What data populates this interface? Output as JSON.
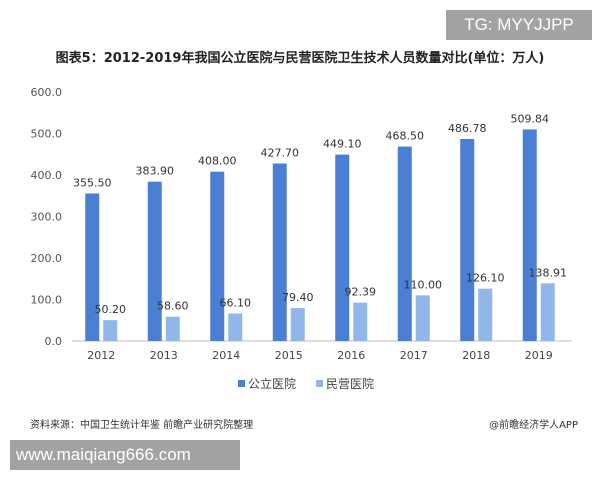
{
  "watermark_top": "TG: MYYJJPP",
  "watermark_bottom": "www.maiqiang666.com",
  "source": "资料来源：中国卫生统计年鉴 前瞻产业研究院整理",
  "credit": "@前瞻经济学人APP",
  "chart_data": {
    "type": "bar",
    "title": "图表5：2012-2019年我国公立医院与民营医院卫生技术人员数量对比(单位：万人)",
    "categories": [
      "2012",
      "2013",
      "2014",
      "2015",
      "2016",
      "2017",
      "2018",
      "2019"
    ],
    "series": [
      {
        "name": "公立医院",
        "color": "#4a7fd4",
        "values": [
          355.5,
          383.9,
          408.0,
          427.7,
          449.1,
          468.5,
          486.78,
          509.84
        ],
        "labels": [
          "355.50",
          "383.90",
          "408.00",
          "427.70",
          "449.10",
          "468.50",
          "486.78",
          "509.84"
        ]
      },
      {
        "name": "民营医院",
        "color": "#91b7e8",
        "values": [
          50.2,
          58.6,
          66.1,
          79.4,
          92.39,
          110.0,
          126.1,
          138.91
        ],
        "labels": [
          "50.20",
          "58.60",
          "66.10",
          "79.40",
          "92.39",
          "110.00",
          "126.10",
          "138.91"
        ]
      }
    ],
    "ylim": [
      0,
      600
    ],
    "yticks": [
      "0.0",
      "100.0",
      "200.0",
      "300.0",
      "400.0",
      "500.0",
      "600.0"
    ],
    "grid": false,
    "legend": "bottom"
  }
}
